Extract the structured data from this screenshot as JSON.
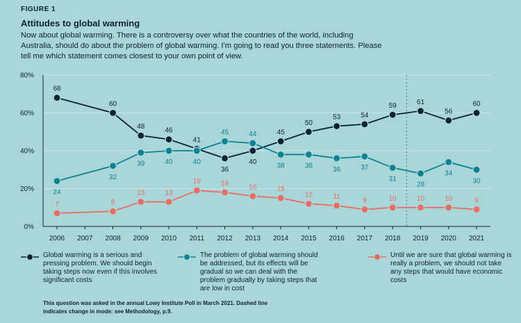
{
  "figure_label": "FIGURE 1",
  "title": "Attitudes to global warming",
  "subtitle": "Now about global warming. There is a controversy over what the countries of the world, including Australia, should do about the problem of global warming. I'm going to read you three statements. Please tell me which statement comes closest to your own point of view.",
  "note": "This question was asked in the annual Lowy Institute Poll in March 2021. Dashed line indicates change in mode: see Methodology, p.9.",
  "colors": {
    "background": "#a9d6d8",
    "series_1": "#0e2233",
    "series_2": "#0b8291",
    "series_3": "#ee6b61",
    "dashed_line": "#5e8b8e"
  },
  "chart_data": {
    "type": "line",
    "x": [
      2006,
      2008,
      2009,
      2010,
      2011,
      2012,
      2013,
      2014,
      2015,
      2016,
      2017,
      2018,
      2019,
      2020,
      2021
    ],
    "x_ticks": [
      "2006",
      "2007",
      "2008",
      "2009",
      "2010",
      "2011",
      "2012",
      "2013",
      "2014",
      "2015",
      "2016",
      "2017",
      "2018",
      "2019",
      "2020",
      "2021"
    ],
    "y_ticks": [
      "0%",
      "20%",
      "40%",
      "60%",
      "80%"
    ],
    "ylim": [
      0,
      80
    ],
    "xlim": [
      2006,
      2021
    ],
    "mode_change_year": 2018.5,
    "series": [
      {
        "name": "Global warming is a serious and pressing problem. We should begin taking steps now even if this involves significant costs",
        "color": "#0e2233",
        "values": [
          68,
          60,
          48,
          46,
          41,
          36,
          40,
          45,
          50,
          53,
          54,
          59,
          61,
          56,
          60
        ]
      },
      {
        "name": "The problem of global warming should be addressed, but its effects will be gradual so we can deal with the problem gradually by taking steps that are low in cost",
        "color": "#0b8291",
        "values": [
          24,
          32,
          39,
          40,
          40,
          45,
          44,
          38,
          38,
          36,
          37,
          31,
          28,
          34,
          30
        ]
      },
      {
        "name": "Until we are sure that global warming is really a problem, we should not take any steps that would have economic costs",
        "color": "#ee6b61",
        "values": [
          7,
          8,
          13,
          13,
          19,
          18,
          16,
          15,
          12,
          11,
          9,
          10,
          10,
          10,
          9
        ]
      }
    ]
  }
}
